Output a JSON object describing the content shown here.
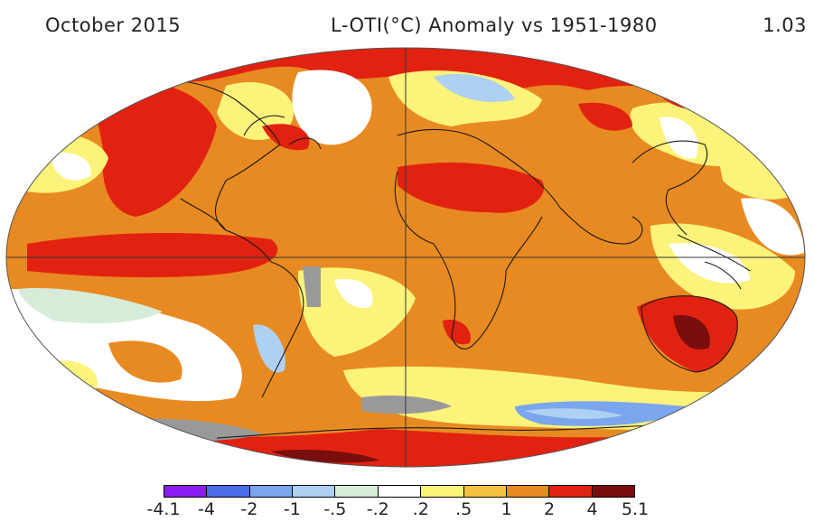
{
  "header": {
    "left": "October 2015",
    "center": "L-OTI(°C) Anomaly vs 1951-1980",
    "right": "1.03"
  },
  "legend": {
    "tick_labels": [
      "-4.1",
      "-4",
      "-2",
      "-1",
      "-.5",
      "-.2",
      ".2",
      ".5",
      "1",
      "2",
      "4",
      "5.1"
    ],
    "bin_colors": [
      "#8c1df0",
      "#4a6de8",
      "#7aa6ee",
      "#aed0f2",
      "#d6ecd8",
      "#ffffff",
      "#fbf37a",
      "#f5c23e",
      "#e88a22",
      "#e22210",
      "#7a0d0d"
    ]
  },
  "colors": {
    "no_data": "#999999",
    "land_outline": "#1a1a1a",
    "grid_line": "#333333"
  }
}
